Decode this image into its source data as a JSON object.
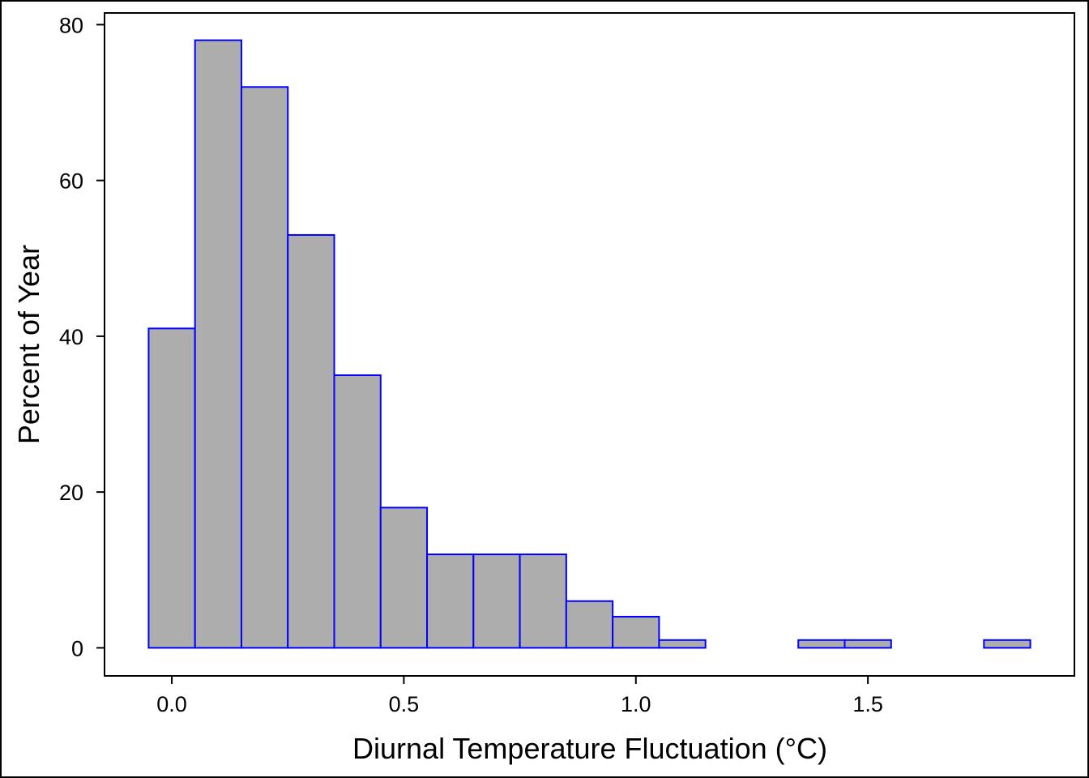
{
  "chart_data": {
    "type": "bar",
    "title": "",
    "xlabel": "Diurnal Temperature Fluctuation (°C)",
    "ylabel": "Percent of Year",
    "bin_width": 0.1,
    "bins": [
      {
        "x": 0.0,
        "value": 41
      },
      {
        "x": 0.1,
        "value": 78
      },
      {
        "x": 0.2,
        "value": 72
      },
      {
        "x": 0.3,
        "value": 53
      },
      {
        "x": 0.4,
        "value": 35
      },
      {
        "x": 0.5,
        "value": 18
      },
      {
        "x": 0.6,
        "value": 12
      },
      {
        "x": 0.7,
        "value": 12
      },
      {
        "x": 0.8,
        "value": 12
      },
      {
        "x": 0.9,
        "value": 6
      },
      {
        "x": 1.0,
        "value": 4
      },
      {
        "x": 1.1,
        "value": 1
      },
      {
        "x": 1.2,
        "value": 0
      },
      {
        "x": 1.3,
        "value": 0
      },
      {
        "x": 1.4,
        "value": 1
      },
      {
        "x": 1.5,
        "value": 1
      },
      {
        "x": 1.6,
        "value": 0
      },
      {
        "x": 1.7,
        "value": 0
      },
      {
        "x": 1.8,
        "value": 1
      }
    ],
    "x_ticks": [
      "0.0",
      "0.5",
      "1.0",
      "1.5"
    ],
    "x_tick_values": [
      0.0,
      0.5,
      1.0,
      1.5
    ],
    "y_ticks": [
      "0",
      "20",
      "40",
      "60",
      "80"
    ],
    "y_tick_values": [
      0,
      20,
      40,
      60,
      80
    ],
    "xlim": [
      -0.145,
      1.945
    ],
    "ylim": [
      -3.6,
      81.5
    ],
    "grid": false,
    "legend": "none",
    "bar_fill": "#adadad",
    "bar_edge": "#0000ff",
    "frame_color": "#000000"
  }
}
